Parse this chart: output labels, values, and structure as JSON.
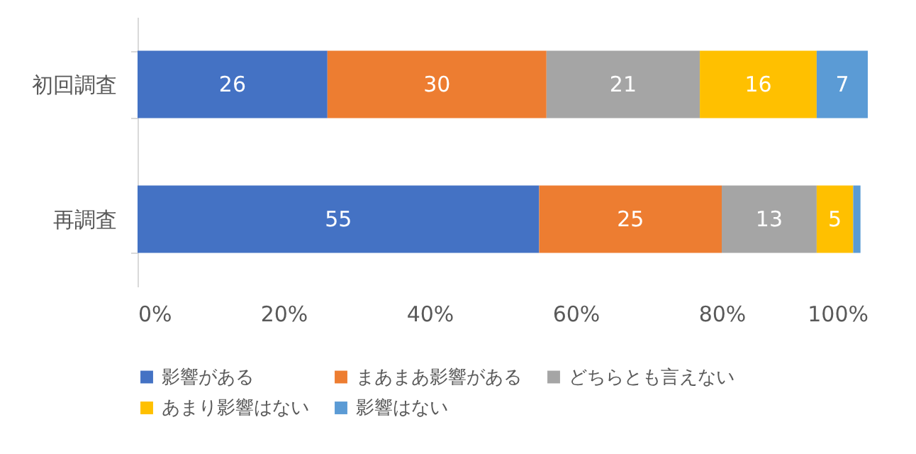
{
  "chart_data": {
    "type": "bar",
    "orientation": "horizontal",
    "stacked": true,
    "categories": [
      "初回調査",
      "再調査"
    ],
    "series": [
      {
        "name": "影響がある",
        "color": "#4472c4",
        "values": [
          26,
          55
        ],
        "value_labels": [
          "26",
          "55"
        ]
      },
      {
        "name": "まあまあ影響がある",
        "color": "#ed7d31",
        "values": [
          30,
          25
        ],
        "value_labels": [
          "30",
          "25"
        ]
      },
      {
        "name": "どちらとも言えない",
        "color": "#a5a5a5",
        "values": [
          21,
          13
        ],
        "value_labels": [
          "21",
          "13"
        ]
      },
      {
        "name": "あまり影響はない",
        "color": "#ffc000",
        "values": [
          16,
          5
        ],
        "value_labels": [
          "16",
          "5"
        ]
      },
      {
        "name": "影響はない",
        "color": "#5b9bd5",
        "values": [
          7,
          1
        ],
        "value_labels": [
          "7",
          null
        ]
      }
    ],
    "xlim": [
      0,
      100
    ],
    "xticks": [
      {
        "value": 0,
        "label": "0%"
      },
      {
        "value": 20,
        "label": "20%"
      },
      {
        "value": 40,
        "label": "40%"
      },
      {
        "value": 60,
        "label": "60%"
      },
      {
        "value": 80,
        "label": "80%"
      },
      {
        "value": 100,
        "label": "100%"
      }
    ],
    "legend": "bottom",
    "grid": false
  }
}
